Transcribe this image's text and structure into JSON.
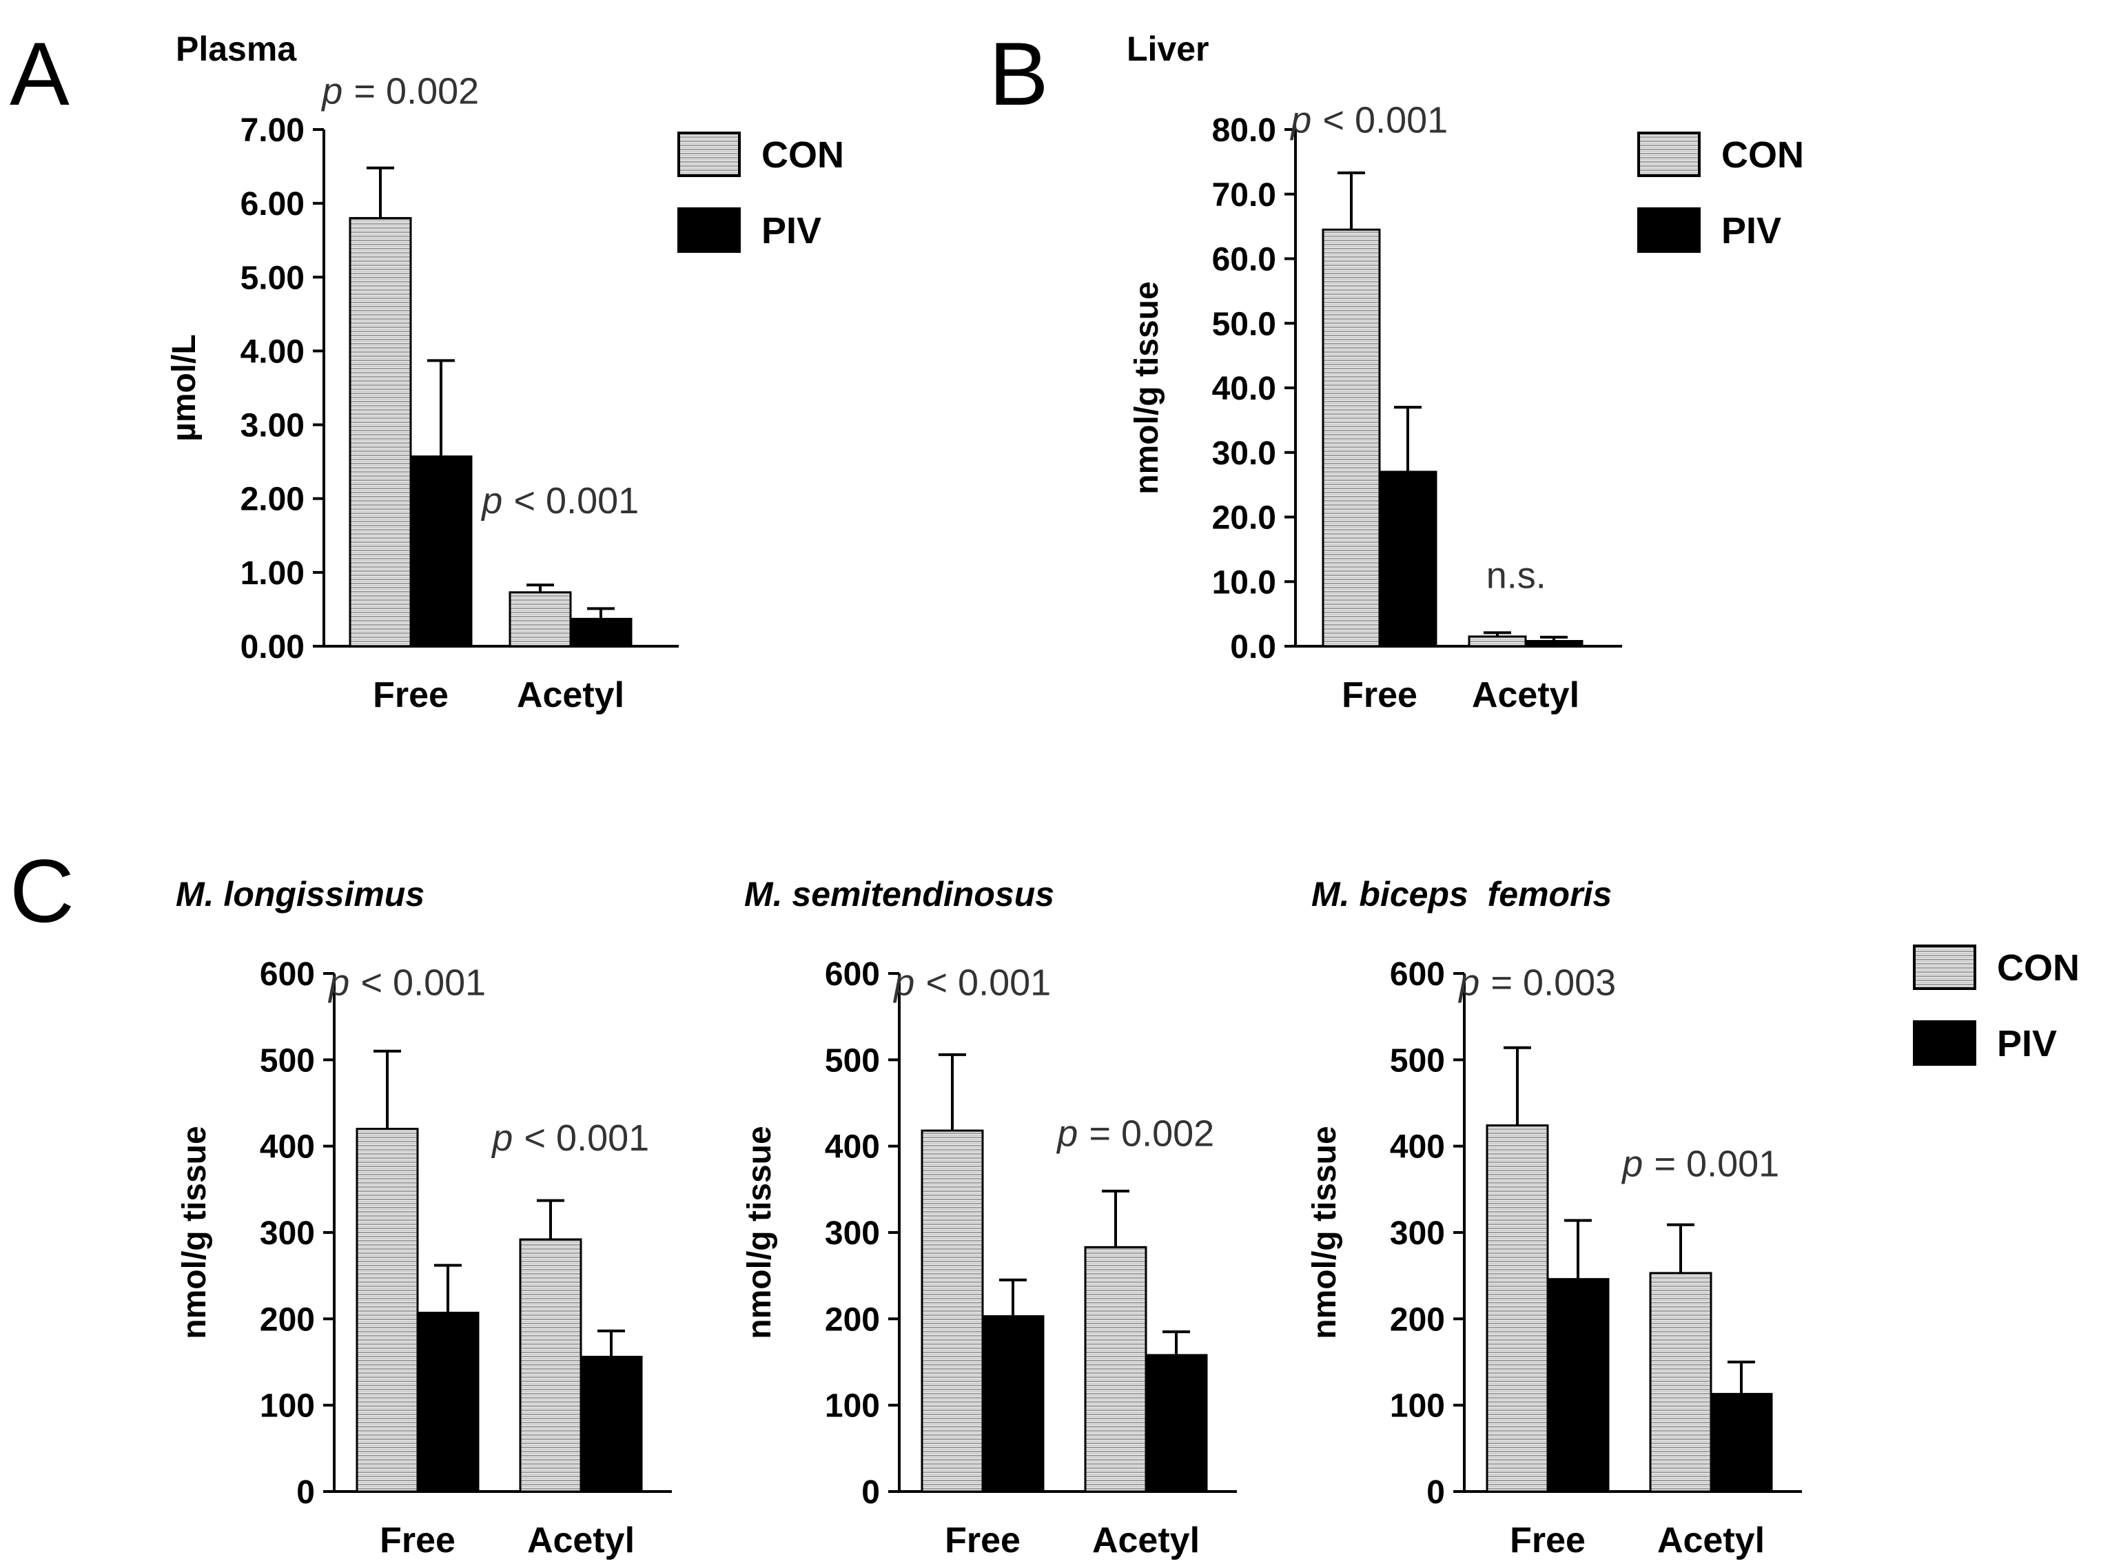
{
  "colors": {
    "con_fill": "url(#hatch)",
    "piv_fill": "#000000",
    "axis": "#000000"
  },
  "legend": {
    "top": {
      "items": [
        {
          "label": "CON",
          "series": "CON"
        },
        {
          "label": "PIV",
          "series": "PIV"
        }
      ]
    },
    "bottom": {
      "items": [
        {
          "label": "CON",
          "series": "CON"
        },
        {
          "label": "PIV",
          "series": "PIV"
        }
      ]
    }
  },
  "chart_data": [
    {
      "id": "A",
      "panel_letter": "A",
      "type": "bar",
      "title": "Plasma",
      "title_italic": false,
      "ylabel": "µmol/L",
      "xlabel": "",
      "ylim": [
        0,
        7
      ],
      "yticks": [
        0,
        1,
        2,
        3,
        4,
        5,
        6,
        7
      ],
      "ytick_labels": [
        "0.00",
        "1.00",
        "2.00",
        "3.00",
        "4.00",
        "5.00",
        "6.00",
        "7.00"
      ],
      "categories": [
        "Free",
        "Acetyl"
      ],
      "series": [
        {
          "name": "CON",
          "values": [
            5.8,
            0.73
          ],
          "errors": [
            0.68,
            0.1
          ]
        },
        {
          "name": "PIV",
          "values": [
            2.57,
            0.37
          ],
          "errors": [
            1.3,
            0.14
          ]
        }
      ],
      "annotations": [
        {
          "category": "Free",
          "p": "p",
          "text": " = 0.002",
          "y": 7.35
        },
        {
          "category": "Acetyl",
          "p": "p",
          "text": " < 0.001",
          "y": 1.8
        }
      ]
    },
    {
      "id": "B",
      "panel_letter": "B",
      "type": "bar",
      "title": "Liver",
      "title_italic": false,
      "ylabel": "nmol/g tissue",
      "xlabel": "",
      "ylim": [
        0,
        80
      ],
      "yticks": [
        0,
        10,
        20,
        30,
        40,
        50,
        60,
        70,
        80
      ],
      "ytick_labels": [
        "0.0",
        "10.0",
        "20.0",
        "30.0",
        "40.0",
        "50.0",
        "60.0",
        "70.0",
        "80.0"
      ],
      "categories": [
        "Free",
        "Acetyl"
      ],
      "series": [
        {
          "name": "CON",
          "values": [
            64.5,
            1.5
          ],
          "errors": [
            8.8,
            0.6
          ]
        },
        {
          "name": "PIV",
          "values": [
            27.0,
            0.8
          ],
          "errors": [
            10.0,
            0.6
          ]
        }
      ],
      "annotations": [
        {
          "category": "Free",
          "p": "p",
          "text": " < 0.001",
          "y": 79.5
        },
        {
          "category": "Acetyl",
          "p": "",
          "text": "n.s.",
          "y": 9.0
        }
      ]
    },
    {
      "id": "C1",
      "panel_letter": "C",
      "type": "bar",
      "title": "M. longissimus",
      "title_italic": true,
      "ylabel": "nmol/g tissue",
      "xlabel": "",
      "ylim": [
        0,
        600
      ],
      "yticks": [
        0,
        100,
        200,
        300,
        400,
        500,
        600
      ],
      "ytick_labels": [
        "0",
        "100",
        "200",
        "300",
        "400",
        "500",
        "600"
      ],
      "categories": [
        "Free",
        "Acetyl"
      ],
      "series": [
        {
          "name": "CON",
          "values": [
            420,
            292
          ],
          "errors": [
            90,
            45
          ]
        },
        {
          "name": "PIV",
          "values": [
            207,
            156
          ],
          "errors": [
            55,
            30
          ]
        }
      ],
      "annotations": [
        {
          "category": "Free",
          "p": "p",
          "text": " < 0.001",
          "y": 575
        },
        {
          "category": "Acetyl",
          "p": "p",
          "text": " < 0.001",
          "y": 395
        }
      ]
    },
    {
      "id": "C2",
      "panel_letter": "",
      "type": "bar",
      "title": "M. semitendinosus",
      "title_italic": true,
      "ylabel": "nmol/g tissue",
      "xlabel": "",
      "ylim": [
        0,
        600
      ],
      "yticks": [
        0,
        100,
        200,
        300,
        400,
        500,
        600
      ],
      "ytick_labels": [
        "0",
        "100",
        "200",
        "300",
        "400",
        "500",
        "600"
      ],
      "categories": [
        "Free",
        "Acetyl"
      ],
      "series": [
        {
          "name": "CON",
          "values": [
            418,
            283
          ],
          "errors": [
            88,
            65
          ]
        },
        {
          "name": "PIV",
          "values": [
            203,
            158
          ],
          "errors": [
            42,
            27
          ]
        }
      ],
      "annotations": [
        {
          "category": "Free",
          "p": "p",
          "text": " < 0.001",
          "y": 575
        },
        {
          "category": "Acetyl",
          "p": "p",
          "text": " = 0.002",
          "y": 400
        }
      ]
    },
    {
      "id": "C3",
      "panel_letter": "",
      "type": "bar",
      "title": "M. biceps  femoris",
      "title_italic": true,
      "ylabel": "nmol/g tissue",
      "xlabel": "",
      "ylim": [
        0,
        600
      ],
      "yticks": [
        0,
        100,
        200,
        300,
        400,
        500,
        600
      ],
      "ytick_labels": [
        "0",
        "100",
        "200",
        "300",
        "400",
        "500",
        "600"
      ],
      "categories": [
        "Free",
        "Acetyl"
      ],
      "series": [
        {
          "name": "CON",
          "values": [
            424,
            253
          ],
          "errors": [
            90,
            56
          ]
        },
        {
          "name": "PIV",
          "values": [
            246,
            113
          ],
          "errors": [
            68,
            37
          ]
        }
      ],
      "annotations": [
        {
          "category": "Free",
          "p": "p",
          "text": " = 0.003",
          "y": 575
        },
        {
          "category": "Acetyl",
          "p": "p",
          "text": " = 0.001",
          "y": 365
        }
      ]
    }
  ]
}
